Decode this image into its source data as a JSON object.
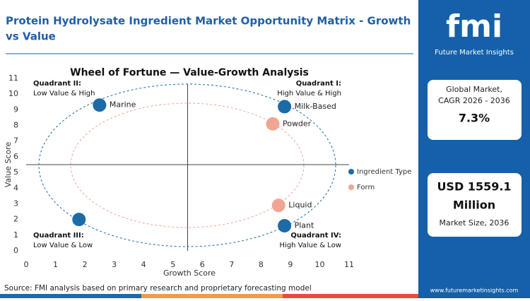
{
  "header": {
    "title": [
      "Protein Hydrolysate Ingredient Market Opportunity Matrix - Growth",
      "vs Value"
    ]
  },
  "chart_data": {
    "type": "scatter",
    "title": "Wheel of Fortune — Value-Growth Analysis",
    "x_label": "Growth Score",
    "y_label": "Value Score",
    "xlim": [
      0,
      11
    ],
    "ylim": [
      0,
      11
    ],
    "xticks": [
      0,
      1,
      2,
      3,
      4,
      5,
      6,
      7,
      8,
      9,
      10,
      11
    ],
    "yticks": [
      0,
      1,
      2,
      3,
      4,
      5,
      6,
      7,
      8,
      9,
      10,
      11
    ],
    "dividers": {
      "x": 5.5,
      "y": 5.5
    },
    "legend": "right",
    "series": [
      {
        "name": "Ingredient Type",
        "color": "#1c6aa8",
        "x": [
          2.5,
          8.8,
          8.8,
          1.8
        ],
        "values": [
          9.3,
          9.2,
          1.6,
          2.0
        ],
        "labels": [
          "Marine",
          "Milk-Based",
          "Plant",
          null
        ]
      },
      {
        "name": "Form",
        "color": "#f0a592",
        "x": [
          8.4,
          8.6
        ],
        "values": [
          8.1,
          2.9
        ],
        "labels": [
          "Powder",
          "Liquid"
        ]
      }
    ],
    "quadrants": [
      {
        "title": "Quadrant II:",
        "text": "Low Value & High"
      },
      {
        "title": "Quadrant I:",
        "text": "High Value & High"
      },
      {
        "title": "Quadrant III:",
        "text": "Low Value & Low"
      },
      {
        "title": "Quadrant IV:",
        "text": "High Value & Low"
      }
    ]
  },
  "sidebar": {
    "logo": "fmi",
    "brand": "Future Market Insights",
    "cagr": {
      "label": [
        "Global Market,",
        "CAGR 2026 - 2036"
      ],
      "value": "7.3%"
    },
    "size": {
      "value": [
        "USD 1559.1",
        "Million"
      ],
      "label": "Market Size, 2036"
    },
    "website": "www.futuremarketinsights.com"
  },
  "footer": {
    "source": "Source: FMI analysis based on primary research and proprietary forecasting model"
  }
}
